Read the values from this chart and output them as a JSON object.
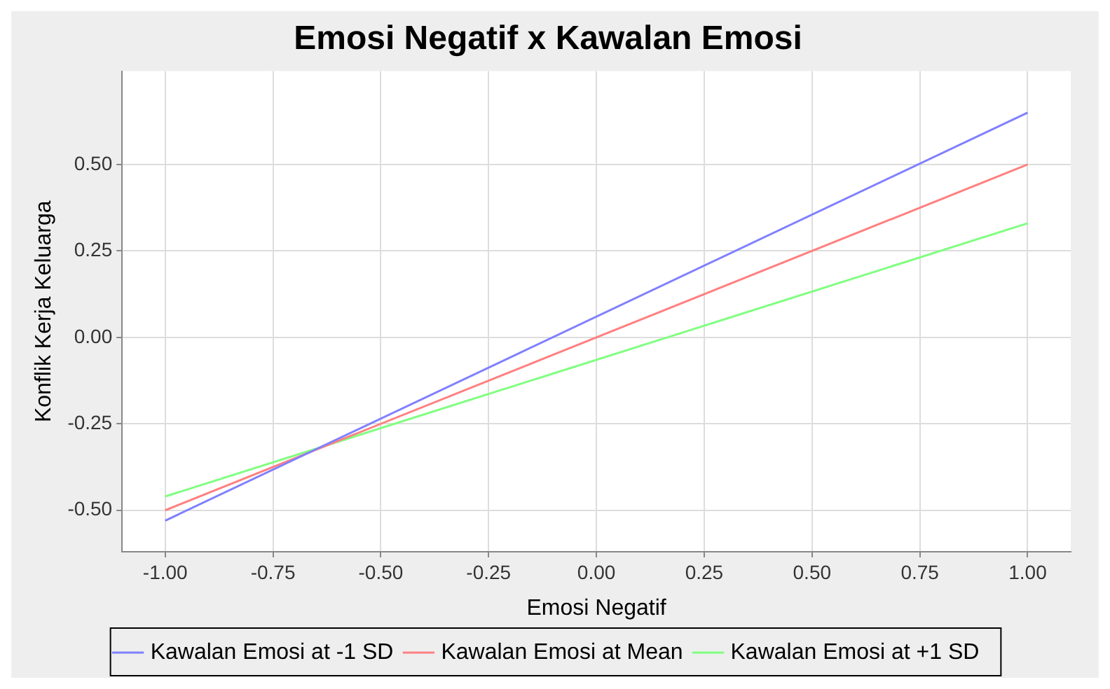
{
  "chart_data": {
    "type": "line",
    "title": "Emosi Negatif x Kawalan Emosi",
    "xlabel": "Emosi Negatif",
    "ylabel": "Konflik Kerja Keluarga",
    "x": [
      -1,
      1
    ],
    "series": [
      {
        "name": "Kawalan Emosi at -1 SD",
        "color": "#8080ff",
        "values": [
          -0.53,
          0.65
        ]
      },
      {
        "name": "Kawalan Emosi at Mean",
        "color": "#ff8080",
        "values": [
          -0.5,
          0.5
        ]
      },
      {
        "name": "Kawalan Emosi at +1 SD",
        "color": "#80ff80",
        "values": [
          -0.46,
          0.33
        ]
      }
    ],
    "xlim": [
      -1.1,
      1.1
    ],
    "xticks": [
      {
        "value": -1,
        "label": "-1.00"
      },
      {
        "value": -0.75,
        "label": "-0.75"
      },
      {
        "value": -0.5,
        "label": "-0.50"
      },
      {
        "value": -0.25,
        "label": "-0.25"
      },
      {
        "value": 0,
        "label": "0.00"
      },
      {
        "value": 0.25,
        "label": "0.25"
      },
      {
        "value": 0.5,
        "label": "0.50"
      },
      {
        "value": 0.75,
        "label": "0.75"
      },
      {
        "value": 1,
        "label": "1.00"
      }
    ],
    "ylim": [
      -0.62,
      0.77
    ],
    "yticks": [
      {
        "value": -0.5,
        "label": "-0.50"
      },
      {
        "value": -0.25,
        "label": "-0.25"
      },
      {
        "value": 0,
        "label": "0.00"
      },
      {
        "value": 0.25,
        "label": "0.25"
      },
      {
        "value": 0.5,
        "label": "0.50"
      }
    ],
    "grid": true,
    "legend": "bottom",
    "marker": "none",
    "line_style": "solid"
  }
}
